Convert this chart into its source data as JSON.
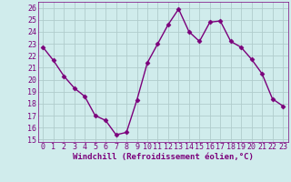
{
  "x": [
    0,
    1,
    2,
    3,
    4,
    5,
    6,
    7,
    8,
    9,
    10,
    11,
    12,
    13,
    14,
    15,
    16,
    17,
    18,
    19,
    20,
    21,
    22,
    23
  ],
  "y": [
    22.7,
    21.6,
    20.3,
    19.3,
    18.6,
    17.0,
    16.6,
    15.4,
    15.6,
    18.3,
    21.4,
    23.0,
    24.6,
    25.9,
    24.0,
    23.2,
    24.8,
    24.9,
    23.2,
    22.7,
    21.7,
    20.5,
    18.4,
    17.8
  ],
  "line_color": "#7b007b",
  "marker": "D",
  "markersize": 2.5,
  "linewidth": 1.0,
  "bg_color": "#d0ecec",
  "grid_color": "#b0cccc",
  "xlabel": "Windchill (Refroidissement éolien,°C)",
  "xlabel_color": "#7b007b",
  "xlabel_fontsize": 6.5,
  "tick_color": "#7b007b",
  "tick_fontsize": 6.0,
  "xlim": [
    -0.5,
    23.5
  ],
  "ylim": [
    14.8,
    26.5
  ],
  "yticks": [
    15,
    16,
    17,
    18,
    19,
    20,
    21,
    22,
    23,
    24,
    25,
    26
  ],
  "xticks": [
    0,
    1,
    2,
    3,
    4,
    5,
    6,
    7,
    8,
    9,
    10,
    11,
    12,
    13,
    14,
    15,
    16,
    17,
    18,
    19,
    20,
    21,
    22,
    23
  ]
}
